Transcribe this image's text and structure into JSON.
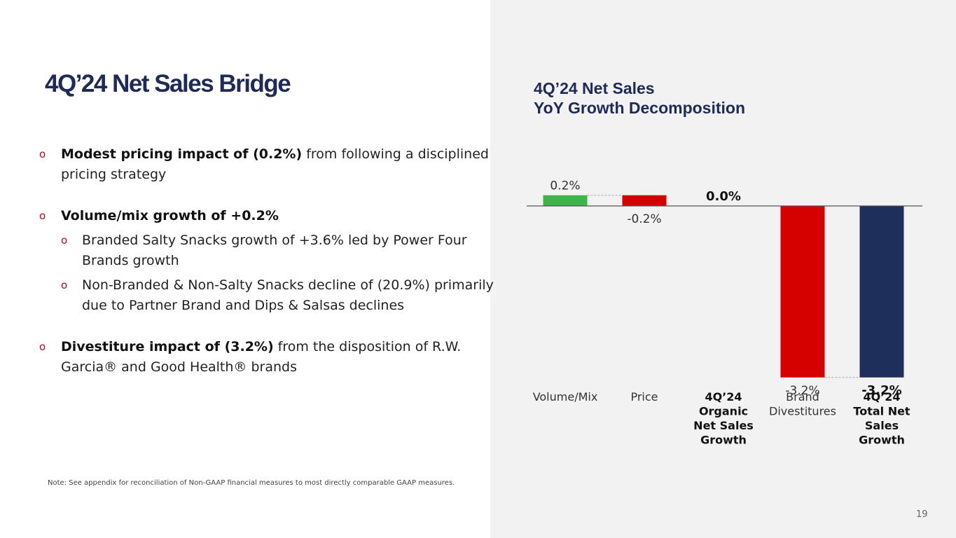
{
  "page": {
    "title": "4Q’24 Net Sales Bridge",
    "note": "Note: See appendix for reconciliation of Non-GAAP financial measures to most directly comparable GAAP measures.",
    "page_number": "19"
  },
  "bullets": [
    {
      "marker": "o",
      "bold": "Modest pricing impact of (0.2%)",
      "text": " from following a disciplined pricing strategy",
      "sub": []
    },
    {
      "marker": "o",
      "bold": "Volume/mix growth of +0.2%",
      "text": "",
      "sub": [
        {
          "marker": "o",
          "text": "Branded Salty Snacks growth of +3.6% led by Power Four Brands growth"
        },
        {
          "marker": "o",
          "text": "Non-Branded & Non-Salty Snacks decline of (20.9%) primarily due to Partner Brand and Dips & Salsas declines"
        }
      ]
    },
    {
      "marker": "o",
      "bold": "Divestiture impact of (3.2%)",
      "text": " from the disposition of R.W. Garcia® and Good Health® brands",
      "sub": []
    }
  ],
  "chart_title": {
    "line1": "4Q’24 Net Sales",
    "line2": "YoY Growth Decomposition"
  },
  "colors": {
    "green": "#3db549",
    "red": "#d50000",
    "navy": "#1e2f5c",
    "axis": "#555555",
    "connector": "#aaaaaa"
  },
  "chart_data": {
    "type": "bar",
    "subtype": "waterfall",
    "title": "4Q’24 Net Sales YoY Growth Decomposition",
    "unit": "%",
    "categories": [
      "Volume/Mix",
      "Price",
      "4Q’24 Organic Net Sales Growth",
      "Brand Divestitures",
      "4Q’24 Total Net Sales Growth"
    ],
    "category_label_lines": [
      [
        "Volume/Mix"
      ],
      [
        "Price"
      ],
      [
        "4Q’24",
        "Organic",
        "Net Sales",
        "Growth"
      ],
      [
        "Brand",
        "Divestitures"
      ],
      [
        "4Q’24",
        "Total Net",
        "Sales",
        "Growth"
      ]
    ],
    "category_bold": [
      false,
      false,
      true,
      false,
      true
    ],
    "values": [
      0.2,
      -0.2,
      0.0,
      -3.2,
      -3.2
    ],
    "kinds": [
      "delta",
      "delta",
      "total",
      "delta",
      "total"
    ],
    "bar_colors": [
      "green",
      "red",
      "none",
      "red",
      "navy"
    ],
    "data_labels": [
      "0.2%",
      "-0.2%",
      "0.0%",
      "-3.2%",
      "-3.2%"
    ],
    "data_label_bold": [
      false,
      false,
      true,
      false,
      true
    ],
    "ylim": [
      -3.2,
      0.2
    ],
    "grid": false,
    "legend": "none"
  }
}
